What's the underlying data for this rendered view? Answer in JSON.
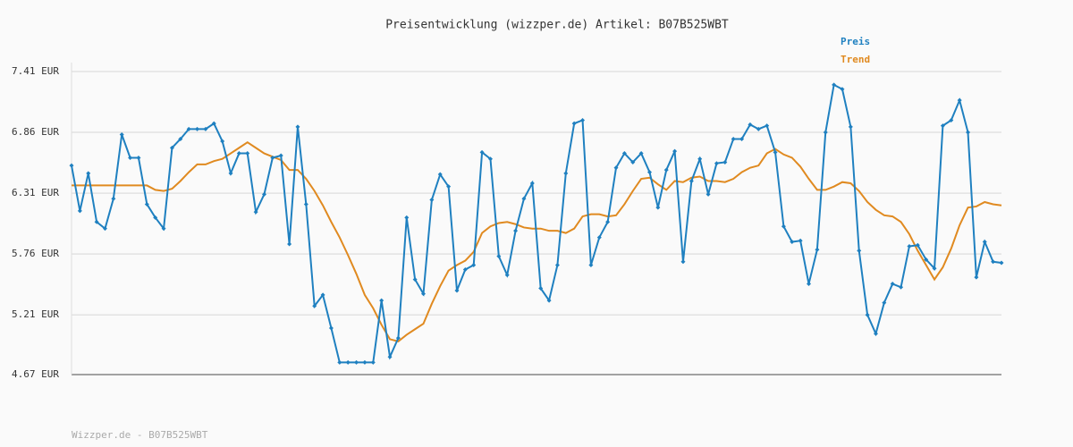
{
  "chart_data": {
    "type": "line",
    "title": "Preisentwicklung (wizzper.de) Artikel: B07B525WBT",
    "footer": "Wizzper.de - B07B525WBT",
    "ylim": [
      4.67,
      7.41
    ],
    "yticks": [
      {
        "value": 4.67,
        "label": "4.67 EUR"
      },
      {
        "value": 5.21,
        "label": "5.21 EUR"
      },
      {
        "value": 5.76,
        "label": "5.76 EUR"
      },
      {
        "value": 6.31,
        "label": "6.31 EUR"
      },
      {
        "value": 6.86,
        "label": "6.86 EUR"
      },
      {
        "value": 7.41,
        "label": "7.41 EUR"
      }
    ],
    "grid": true,
    "legend": "top-right",
    "series": [
      {
        "name": "Preis",
        "color": "#1f80c0",
        "markers": true,
        "values": [
          6.56,
          6.15,
          6.49,
          6.05,
          5.99,
          6.26,
          6.84,
          6.63,
          6.63,
          6.21,
          6.09,
          5.99,
          6.72,
          6.8,
          6.89,
          6.89,
          6.89,
          6.94,
          6.78,
          6.49,
          6.67,
          6.67,
          6.14,
          6.3,
          6.63,
          6.65,
          5.85,
          6.91,
          6.21,
          5.29,
          5.39,
          5.09,
          4.78,
          4.78,
          4.78,
          4.78,
          4.78,
          5.34,
          4.83,
          5.0,
          6.09,
          5.53,
          5.4,
          6.25,
          6.48,
          6.37,
          5.43,
          5.62,
          5.66,
          6.68,
          6.62,
          5.74,
          5.57,
          5.97,
          6.26,
          6.4,
          5.45,
          5.34,
          5.66,
          6.49,
          6.94,
          6.97,
          5.66,
          5.91,
          6.05,
          6.54,
          6.67,
          6.59,
          6.67,
          6.5,
          6.18,
          6.52,
          6.69,
          5.69,
          6.42,
          6.62,
          6.3,
          6.58,
          6.59,
          6.8,
          6.8,
          6.93,
          6.89,
          6.92,
          6.68,
          6.01,
          5.87,
          5.88,
          5.49,
          5.8,
          6.86,
          7.29,
          7.25,
          6.91,
          5.79,
          5.21,
          5.04,
          5.32,
          5.49,
          5.46,
          5.83,
          5.84,
          5.71,
          5.63,
          6.92,
          6.97,
          7.15,
          6.86,
          5.55,
          5.87,
          5.69,
          5.68
        ]
      },
      {
        "name": "Trend",
        "color": "#e08a20",
        "markers": false,
        "values": [
          6.38,
          6.38,
          6.38,
          6.38,
          6.38,
          6.38,
          6.38,
          6.38,
          6.38,
          6.38,
          6.34,
          6.33,
          6.35,
          6.42,
          6.5,
          6.57,
          6.57,
          6.6,
          6.62,
          6.67,
          6.72,
          6.77,
          6.72,
          6.67,
          6.64,
          6.61,
          6.52,
          6.52,
          6.44,
          6.33,
          6.2,
          6.05,
          5.91,
          5.75,
          5.58,
          5.39,
          5.27,
          5.12,
          4.99,
          4.97,
          5.03,
          5.08,
          5.13,
          5.31,
          5.47,
          5.61,
          5.66,
          5.7,
          5.78,
          5.95,
          6.01,
          6.04,
          6.05,
          6.03,
          6.0,
          5.99,
          5.99,
          5.97,
          5.97,
          5.95,
          5.99,
          6.1,
          6.12,
          6.12,
          6.1,
          6.11,
          6.21,
          6.33,
          6.44,
          6.45,
          6.39,
          6.34,
          6.42,
          6.41,
          6.45,
          6.46,
          6.42,
          6.42,
          6.41,
          6.44,
          6.5,
          6.54,
          6.56,
          6.67,
          6.71,
          6.66,
          6.63,
          6.55,
          6.44,
          6.34,
          6.34,
          6.37,
          6.41,
          6.4,
          6.33,
          6.23,
          6.16,
          6.11,
          6.1,
          6.05,
          5.94,
          5.79,
          5.66,
          5.53,
          5.64,
          5.81,
          6.02,
          6.18,
          6.19,
          6.23,
          6.21,
          6.2
        ]
      }
    ]
  }
}
